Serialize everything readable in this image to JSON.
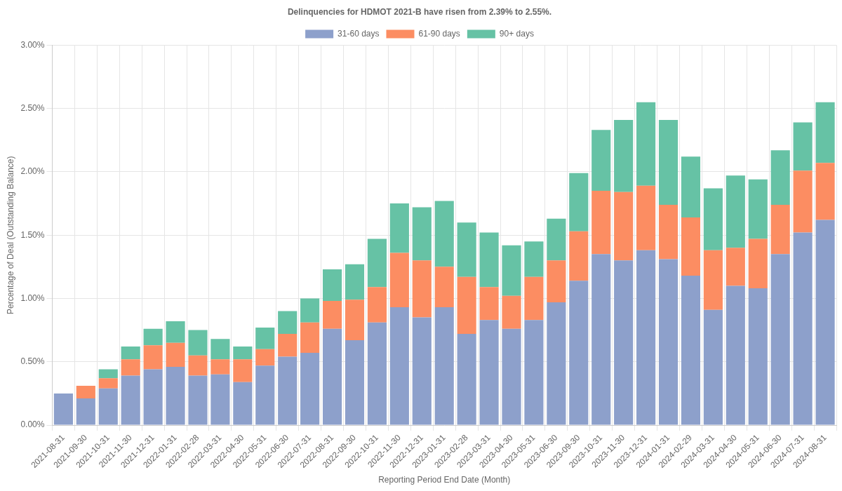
{
  "chart_data": {
    "type": "bar",
    "title": "Delinquencies for HDMOT 2021-B have risen from 2.39% to 2.55%.",
    "x_label": "Reporting Period End Date (Month)",
    "y_label": "Percentage of Deal (Outstanding Balance)",
    "categories": [
      "2021-08-31",
      "2021-09-30",
      "2021-10-31",
      "2021-11-30",
      "2021-12-31",
      "2022-01-31",
      "2022-02-28",
      "2022-03-31",
      "2022-04-30",
      "2022-05-31",
      "2022-06-30",
      "2022-07-31",
      "2022-08-31",
      "2022-09-30",
      "2022-10-31",
      "2022-11-30",
      "2022-12-31",
      "2023-01-31",
      "2023-02-28",
      "2023-03-31",
      "2023-04-30",
      "2023-05-31",
      "2023-06-30",
      "2023-09-30",
      "2023-10-31",
      "2023-11-30",
      "2023-12-31",
      "2024-01-31",
      "2024-02-29",
      "2024-03-31",
      "2024-04-30",
      "2024-05-31",
      "2024-06-30",
      "2024-07-31",
      "2024-08-31"
    ],
    "series": [
      {
        "name": "31-60 days",
        "color": "#8da0cb",
        "values": [
          0.25,
          0.21,
          0.29,
          0.39,
          0.44,
          0.46,
          0.39,
          0.4,
          0.34,
          0.47,
          0.54,
          0.57,
          0.76,
          0.67,
          0.81,
          0.93,
          0.85,
          0.93,
          0.72,
          0.83,
          0.76,
          0.83,
          0.97,
          1.14,
          1.35,
          1.3,
          1.38,
          1.31,
          1.18,
          0.91,
          1.1,
          1.08,
          1.35,
          1.52,
          1.62
        ]
      },
      {
        "name": "61-90 days",
        "color": "#fc8d62",
        "values": [
          0,
          0.1,
          0.08,
          0.13,
          0.19,
          0.19,
          0.16,
          0.12,
          0.18,
          0.13,
          0.18,
          0.24,
          0.22,
          0.32,
          0.28,
          0.43,
          0.45,
          0.32,
          0.45,
          0.26,
          0.26,
          0.34,
          0.33,
          0.39,
          0.5,
          0.54,
          0.51,
          0.43,
          0.46,
          0.47,
          0.3,
          0.39,
          0.39,
          0.49,
          0.45
        ]
      },
      {
        "name": "90+ days",
        "color": "#66c2a5",
        "values": [
          0,
          0,
          0.07,
          0.1,
          0.13,
          0.17,
          0.2,
          0.16,
          0.1,
          0.17,
          0.18,
          0.19,
          0.25,
          0.28,
          0.38,
          0.39,
          0.42,
          0.52,
          0.43,
          0.43,
          0.4,
          0.28,
          0.33,
          0.46,
          0.48,
          0.57,
          0.66,
          0.67,
          0.48,
          0.49,
          0.57,
          0.47,
          0.43,
          0.38,
          0.48
        ]
      }
    ],
    "stacked": true,
    "ylim": [
      0,
      3
    ],
    "yticks": [
      {
        "value": 0,
        "label": "0.00%"
      },
      {
        "value": 0.5,
        "label": "0.50%"
      },
      {
        "value": 1,
        "label": "1.00%"
      },
      {
        "value": 1.5,
        "label": "1.50%"
      },
      {
        "value": 2,
        "label": "2.00%"
      },
      {
        "value": 2.5,
        "label": "2.50%"
      },
      {
        "value": 3,
        "label": "3.00%"
      }
    ],
    "grid": true,
    "legend": "top"
  }
}
